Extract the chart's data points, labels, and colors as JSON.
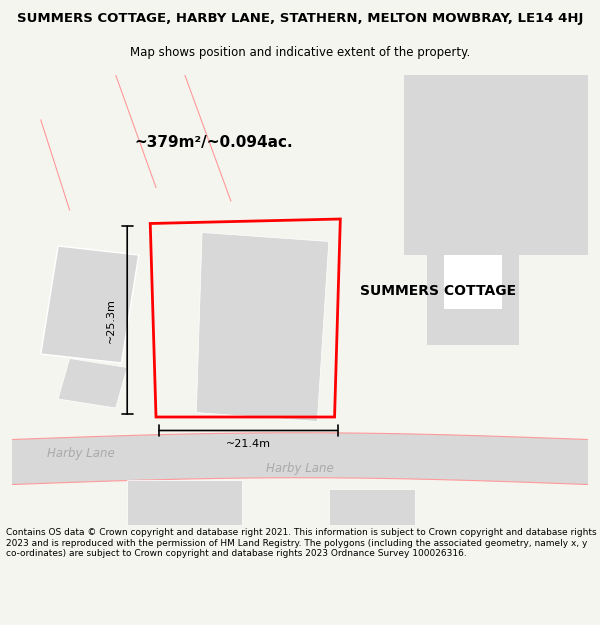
{
  "title": "SUMMERS COTTAGE, HARBY LANE, STATHERN, MELTON MOWBRAY, LE14 4HJ",
  "subtitle": "Map shows position and indicative extent of the property.",
  "area_label": "~379m²/~0.094ac.",
  "property_name": "SUMMERS COTTAGE",
  "dim_h": "~25.3m",
  "dim_w": "~21.4m",
  "road_label_left": "Harby Lane",
  "road_label_right": "Harby Lane",
  "footer": "Contains OS data © Crown copyright and database right 2021. This information is subject to Crown copyright and database rights 2023 and is reproduced with the permission of HM Land Registry. The polygons (including the associated geometry, namely x, y co-ordinates) are subject to Crown copyright and database rights 2023 Ordnance Survey 100026316.",
  "bg_color": "#f5f5f0",
  "map_bg": "#ffffff",
  "road_color": "#d8d8d8",
  "building_fill": "#d8d8d8",
  "plot_outline_color": "#ff0000",
  "dim_line_color": "#000000",
  "road_outline_color": "#ff9999"
}
